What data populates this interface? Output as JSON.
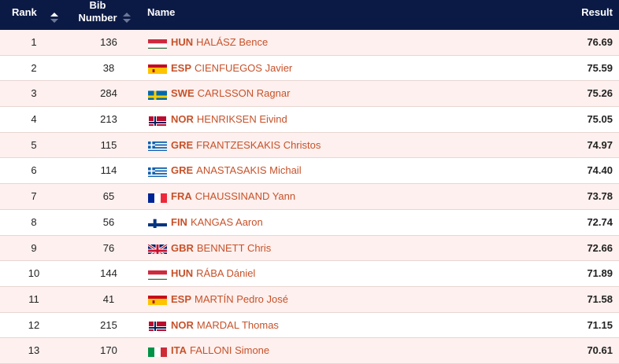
{
  "header": {
    "rank": "Rank",
    "bib_line1": "Bib",
    "bib_line2": "Number",
    "name": "Name",
    "result": "Result"
  },
  "rows": [
    {
      "rank": "1",
      "bib": "136",
      "noc": "HUN",
      "name": "HALÁSZ Bence",
      "result": "76.69",
      "flag": "hungary-flag-icon"
    },
    {
      "rank": "2",
      "bib": "38",
      "noc": "ESP",
      "name": "CIENFUEGOS Javier",
      "result": "75.59",
      "flag": "spain-flag-icon"
    },
    {
      "rank": "3",
      "bib": "284",
      "noc": "SWE",
      "name": "CARLSSON Ragnar",
      "result": "75.26",
      "flag": "sweden-flag-icon"
    },
    {
      "rank": "4",
      "bib": "213",
      "noc": "NOR",
      "name": "HENRIKSEN Eivind",
      "result": "75.05",
      "flag": "norway-flag-icon"
    },
    {
      "rank": "5",
      "bib": "115",
      "noc": "GRE",
      "name": "FRANTZESKAKIS Christos",
      "result": "74.97",
      "flag": "greece-flag-icon"
    },
    {
      "rank": "6",
      "bib": "114",
      "noc": "GRE",
      "name": "ANASTASAKIS Michail",
      "result": "74.40",
      "flag": "greece-flag-icon"
    },
    {
      "rank": "7",
      "bib": "65",
      "noc": "FRA",
      "name": "CHAUSSINAND Yann",
      "result": "73.78",
      "flag": "france-flag-icon"
    },
    {
      "rank": "8",
      "bib": "56",
      "noc": "FIN",
      "name": "KANGAS Aaron",
      "result": "72.74",
      "flag": "finland-flag-icon"
    },
    {
      "rank": "9",
      "bib": "76",
      "noc": "GBR",
      "name": "BENNETT Chris",
      "result": "72.66",
      "flag": "uk-flag-icon"
    },
    {
      "rank": "10",
      "bib": "144",
      "noc": "HUN",
      "name": "RÁBA Dániel",
      "result": "71.89",
      "flag": "hungary-flag-icon"
    },
    {
      "rank": "11",
      "bib": "41",
      "noc": "ESP",
      "name": "MARTÍN Pedro José",
      "result": "71.58",
      "flag": "spain-flag-icon"
    },
    {
      "rank": "12",
      "bib": "215",
      "noc": "NOR",
      "name": "MARDAL Thomas",
      "result": "71.15",
      "flag": "norway-flag-icon"
    },
    {
      "rank": "13",
      "bib": "170",
      "noc": "ITA",
      "name": "FALLONI Simone",
      "result": "70.61",
      "flag": "italy-flag-icon"
    }
  ],
  "colors": {
    "header_bg": "#0b1a45",
    "odd_row_bg": "#fdf0ee",
    "link": "#c7522a"
  }
}
